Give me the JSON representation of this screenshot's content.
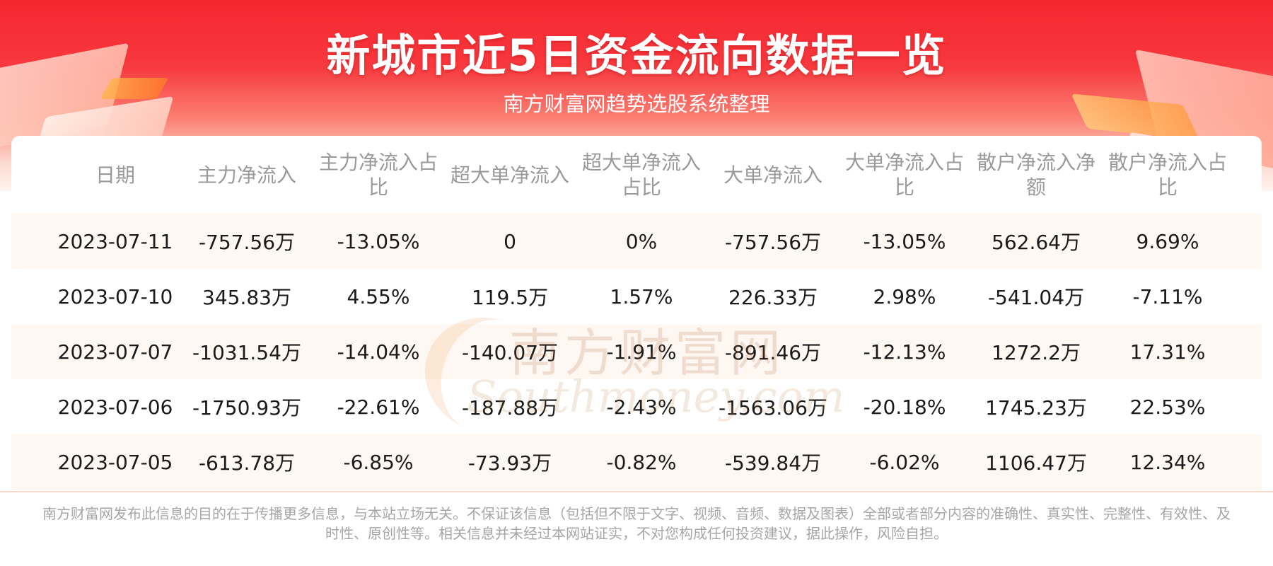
{
  "title": "新城市近5日资金流向数据一览",
  "subtitle": "南方财富网趋势选股系统整理",
  "watermark": {
    "cn": "南方财富网",
    "en": "Southmoney.com"
  },
  "table": {
    "headers": [
      "日期",
      "主力净流入",
      "主力净流入占比",
      "超大单净流入",
      "超大单净流入占比",
      "大单净流入",
      "大单净流入占比",
      "散户净流入净额",
      "散户净流入占比"
    ],
    "rows": [
      [
        "2023-07-11",
        "-757.56万",
        "-13.05%",
        "0",
        "0%",
        "-757.56万",
        "-13.05%",
        "562.64万",
        "9.69%"
      ],
      [
        "2023-07-10",
        "345.83万",
        "4.55%",
        "119.5万",
        "1.57%",
        "226.33万",
        "2.98%",
        "-541.04万",
        "-7.11%"
      ],
      [
        "2023-07-07",
        "-1031.54万",
        "-14.04%",
        "-140.07万",
        "-1.91%",
        "-891.46万",
        "-12.13%",
        "1272.2万",
        "17.31%"
      ],
      [
        "2023-07-06",
        "-1750.93万",
        "-22.61%",
        "-187.88万",
        "-2.43%",
        "-1563.06万",
        "-20.18%",
        "1745.23万",
        "22.53%"
      ],
      [
        "2023-07-05",
        "-613.78万",
        "-6.85%",
        "-73.93万",
        "-0.82%",
        "-539.84万",
        "-6.02%",
        "1106.47万",
        "12.34%"
      ]
    ]
  },
  "disclaimer": "南方财富网发布此信息的目的在于传播更多信息，与本站立场无关。不保证该信息（包括但不限于文字、视频、音频、数据及图表）全部或者部分内容的准确性、真实性、完整性、有效性、及时性、原创性等。相关信息并未经过本网站证实，不对您构成任何投资建议，据此操作，风险自担。"
}
